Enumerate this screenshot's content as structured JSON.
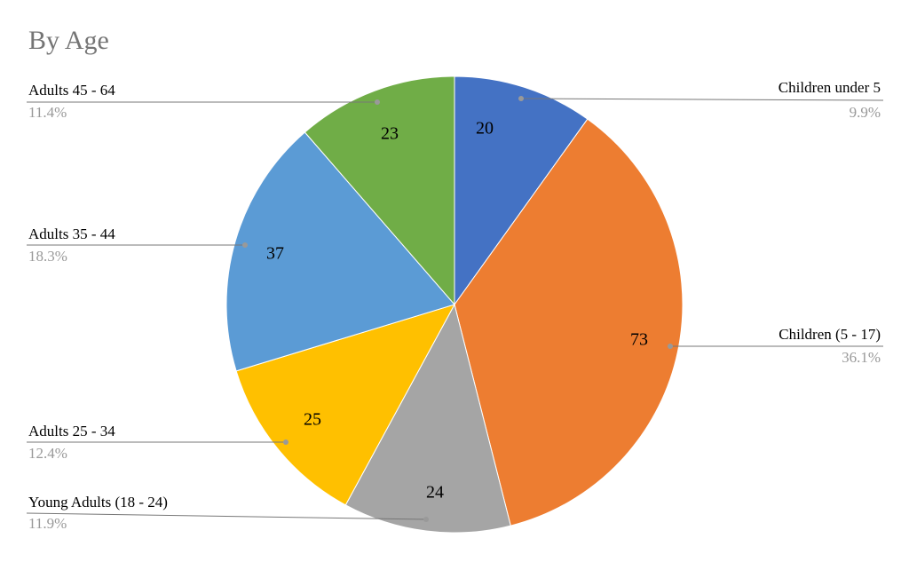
{
  "chart_data": {
    "type": "pie",
    "title": "By Age",
    "categories": [
      "Children under 5",
      "Children (5 - 17)",
      "Young Adults (18 - 24)",
      "Adults 25 - 34",
      "Adults 35 - 44",
      "Adults 45 - 64"
    ],
    "values": [
      20,
      73,
      24,
      25,
      37,
      23
    ],
    "percent_labels": [
      "9.9%",
      "36.1%",
      "11.9%",
      "12.4%",
      "18.3%",
      "11.4%"
    ],
    "colors": [
      "#4472c4",
      "#ed7d31",
      "#a5a5a5",
      "#ffc000",
      "#5b9bd5",
      "#70ad47"
    ]
  }
}
